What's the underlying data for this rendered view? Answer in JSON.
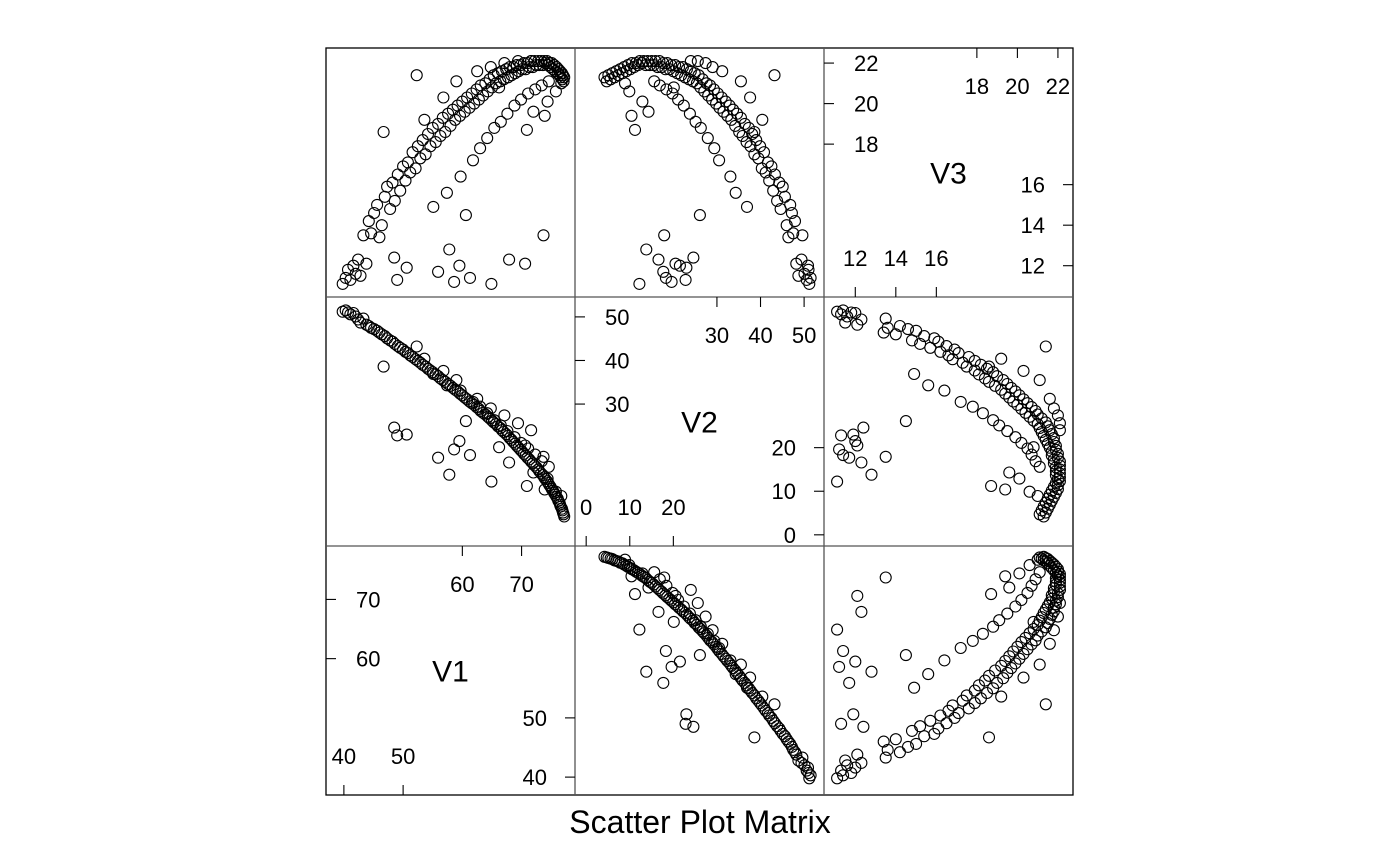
{
  "chart_data": {
    "type": "scatter",
    "title": "Scatter Plot Matrix",
    "variables": [
      "V1",
      "V2",
      "V3"
    ],
    "marker": "open-circle",
    "grid": false,
    "ranges": {
      "V1": [
        38.5,
        77.5
      ],
      "V2": [
        -0.5,
        52.5
      ],
      "V3": [
        10.9,
        22.3
      ]
    },
    "ticks": {
      "V1": [
        40,
        50,
        60,
        70
      ],
      "V2": [
        0,
        10,
        20,
        30,
        40,
        50
      ],
      "V3": [
        12,
        14,
        16,
        18,
        20,
        22
      ]
    },
    "diagonal_axes": {
      "V1": {
        "top": [
          60,
          70
        ],
        "bottom": [
          40,
          50
        ],
        "right": [
          50,
          40
        ],
        "left": [
          70,
          60
        ]
      },
      "V2": {
        "top": [
          30,
          40,
          50
        ],
        "bottom": [
          0,
          10,
          20
        ],
        "right": [
          20,
          10,
          0
        ],
        "left": [
          50,
          40,
          30
        ]
      },
      "V3": {
        "top": [
          18,
          20,
          22
        ],
        "bottom": [
          12,
          14,
          16
        ],
        "right": [
          16,
          14,
          12
        ],
        "left": [
          22,
          20,
          18
        ]
      }
    },
    "observations": [
      [
        39.8,
        51.2,
        11.1
      ],
      [
        40.3,
        51.5,
        11.4
      ],
      [
        40.7,
        51.0,
        11.8
      ],
      [
        41.1,
        50.6,
        11.3
      ],
      [
        41.6,
        50.9,
        12.0
      ],
      [
        42.0,
        50.1,
        11.6
      ],
      [
        42.4,
        49.4,
        12.3
      ],
      [
        42.8,
        48.7,
        11.5
      ],
      [
        43.3,
        49.6,
        13.5
      ],
      [
        43.8,
        48.2,
        12.1
      ],
      [
        44.2,
        47.9,
        14.2
      ],
      [
        44.6,
        47.5,
        13.6
      ],
      [
        45.1,
        47.2,
        14.6
      ],
      [
        45.6,
        46.8,
        15.0
      ],
      [
        46.0,
        46.4,
        13.4
      ],
      [
        46.4,
        46.0,
        14.0
      ],
      [
        46.9,
        45.6,
        15.4
      ],
      [
        47.3,
        45.1,
        15.9
      ],
      [
        47.8,
        44.6,
        14.8
      ],
      [
        48.2,
        44.3,
        16.1
      ],
      [
        48.6,
        43.8,
        15.2
      ],
      [
        49.1,
        43.3,
        16.5
      ],
      [
        49.5,
        42.9,
        15.7
      ],
      [
        50.0,
        42.5,
        16.9
      ],
      [
        50.4,
        42.0,
        16.2
      ],
      [
        50.8,
        41.7,
        17.1
      ],
      [
        51.2,
        41.2,
        16.6
      ],
      [
        51.6,
        40.8,
        17.6
      ],
      [
        52.1,
        40.3,
        16.8
      ],
      [
        52.5,
        39.9,
        17.9
      ],
      [
        52.9,
        39.5,
        17.3
      ],
      [
        53.3,
        39.0,
        18.2
      ],
      [
        53.8,
        38.6,
        17.5
      ],
      [
        54.2,
        38.1,
        18.5
      ],
      [
        54.6,
        37.7,
        17.9
      ],
      [
        55.0,
        37.3,
        18.8
      ],
      [
        55.5,
        36.8,
        18.1
      ],
      [
        55.9,
        36.4,
        19.0
      ],
      [
        56.3,
        35.9,
        18.4
      ],
      [
        56.7,
        35.5,
        19.3
      ],
      [
        57.1,
        35.1,
        18.6
      ],
      [
        57.6,
        34.6,
        19.5
      ],
      [
        58.0,
        34.2,
        18.9
      ],
      [
        58.4,
        33.7,
        19.7
      ],
      [
        58.8,
        33.3,
        19.2
      ],
      [
        59.2,
        32.9,
        19.9
      ],
      [
        59.6,
        32.4,
        19.4
      ],
      [
        60.0,
        32.0,
        20.1
      ],
      [
        60.4,
        31.5,
        19.6
      ],
      [
        60.8,
        31.1,
        20.3
      ],
      [
        61.2,
        30.6,
        19.8
      ],
      [
        61.6,
        30.2,
        20.5
      ],
      [
        62.0,
        29.8,
        20.0
      ],
      [
        62.4,
        29.3,
        20.7
      ],
      [
        62.8,
        28.9,
        20.2
      ],
      [
        63.1,
        28.4,
        20.9
      ],
      [
        63.5,
        28.0,
        20.4
      ],
      [
        63.9,
        27.6,
        21.0
      ],
      [
        64.3,
        27.1,
        20.6
      ],
      [
        64.6,
        26.7,
        21.2
      ],
      [
        65.0,
        26.2,
        20.8
      ],
      [
        65.3,
        25.8,
        21.4
      ],
      [
        65.7,
        25.4,
        21.0
      ],
      [
        66.0,
        24.9,
        21.5
      ],
      [
        66.4,
        24.5,
        21.1
      ],
      [
        66.7,
        24.0,
        21.6
      ],
      [
        67.0,
        23.6,
        21.2
      ],
      [
        67.4,
        23.1,
        21.7
      ],
      [
        67.7,
        22.7,
        21.3
      ],
      [
        68.0,
        22.2,
        21.8
      ],
      [
        68.3,
        21.8,
        21.4
      ],
      [
        68.6,
        21.3,
        21.8
      ],
      [
        68.9,
        20.9,
        21.5
      ],
      [
        69.2,
        20.4,
        21.9
      ],
      [
        69.5,
        20.0,
        21.6
      ],
      [
        69.8,
        19.5,
        21.9
      ],
      [
        70.1,
        19.1,
        21.7
      ],
      [
        70.4,
        18.6,
        22.0
      ],
      [
        70.7,
        18.2,
        21.7
      ],
      [
        71.0,
        17.7,
        22.0
      ],
      [
        71.3,
        17.3,
        21.8
      ],
      [
        71.6,
        16.8,
        22.1
      ],
      [
        71.9,
        16.4,
        21.8
      ],
      [
        72.2,
        15.9,
        22.1
      ],
      [
        72.5,
        15.5,
        21.9
      ],
      [
        72.8,
        15.0,
        22.1
      ],
      [
        73.0,
        14.6,
        21.9
      ],
      [
        73.3,
        14.1,
        22.1
      ],
      [
        73.6,
        13.7,
        21.9
      ],
      [
        73.8,
        13.2,
        22.1
      ],
      [
        74.0,
        12.8,
        22.0
      ],
      [
        74.3,
        12.3,
        22.1
      ],
      [
        74.5,
        11.9,
        21.9
      ],
      [
        74.7,
        11.4,
        22.0
      ],
      [
        74.9,
        11.0,
        21.8
      ],
      [
        75.1,
        10.5,
        22.0
      ],
      [
        75.3,
        10.1,
        21.7
      ],
      [
        75.5,
        9.6,
        21.9
      ],
      [
        75.7,
        9.2,
        21.6
      ],
      [
        75.9,
        8.7,
        21.8
      ],
      [
        76.1,
        8.3,
        21.5
      ],
      [
        76.2,
        7.8,
        21.7
      ],
      [
        76.4,
        7.4,
        21.4
      ],
      [
        76.5,
        6.9,
        21.6
      ],
      [
        76.6,
        6.5,
        21.3
      ],
      [
        76.8,
        6.0,
        21.5
      ],
      [
        76.9,
        5.6,
        21.2
      ],
      [
        77.0,
        5.1,
        21.4
      ],
      [
        77.1,
        4.7,
        21.1
      ],
      [
        77.2,
        4.2,
        21.3
      ],
      [
        55.1,
        36.9,
        14.9
      ],
      [
        57.4,
        34.3,
        15.6
      ],
      [
        59.7,
        33.1,
        16.4
      ],
      [
        61.8,
        30.5,
        17.2
      ],
      [
        63.0,
        29.4,
        17.8
      ],
      [
        64.2,
        27.9,
        18.3
      ],
      [
        65.4,
        26.3,
        18.8
      ],
      [
        66.5,
        25.1,
        19.1
      ],
      [
        67.6,
        23.8,
        19.5
      ],
      [
        68.8,
        22.4,
        19.9
      ],
      [
        69.9,
        21.1,
        20.2
      ],
      [
        71.1,
        19.8,
        20.5
      ],
      [
        72.3,
        18.4,
        20.7
      ],
      [
        73.4,
        16.9,
        20.9
      ],
      [
        74.6,
        15.6,
        21.1
      ],
      [
        62.5,
        31.2,
        21.6
      ],
      [
        64.8,
        29.0,
        21.8
      ],
      [
        67.1,
        27.4,
        22.0
      ],
      [
        69.4,
        25.6,
        22.1
      ],
      [
        71.6,
        24.0,
        22.1
      ],
      [
        53.6,
        40.4,
        19.2
      ],
      [
        56.8,
        37.6,
        20.3
      ],
      [
        59.0,
        35.5,
        21.1
      ],
      [
        70.9,
        11.2,
        18.7
      ],
      [
        73.9,
        10.4,
        19.4
      ],
      [
        75.8,
        9.9,
        20.6
      ],
      [
        76.7,
        8.9,
        21.0
      ],
      [
        74.4,
        12.9,
        20.1
      ],
      [
        72.0,
        14.3,
        19.6
      ],
      [
        66.2,
        20.1,
        20.8
      ],
      [
        49.0,
        22.8,
        11.3
      ],
      [
        48.5,
        24.6,
        12.4
      ],
      [
        50.6,
        23.0,
        11.9
      ],
      [
        58.6,
        19.6,
        11.2
      ],
      [
        61.3,
        18.3,
        11.4
      ],
      [
        59.5,
        21.5,
        12.0
      ],
      [
        64.9,
        12.2,
        11.1
      ],
      [
        67.9,
        16.6,
        12.3
      ],
      [
        70.6,
        20.5,
        12.1
      ],
      [
        73.7,
        17.9,
        13.5
      ],
      [
        57.8,
        13.8,
        12.8
      ],
      [
        55.9,
        17.7,
        11.7
      ],
      [
        46.7,
        38.6,
        18.6
      ],
      [
        52.3,
        43.2,
        21.4
      ],
      [
        60.6,
        26.1,
        14.5
      ]
    ]
  }
}
